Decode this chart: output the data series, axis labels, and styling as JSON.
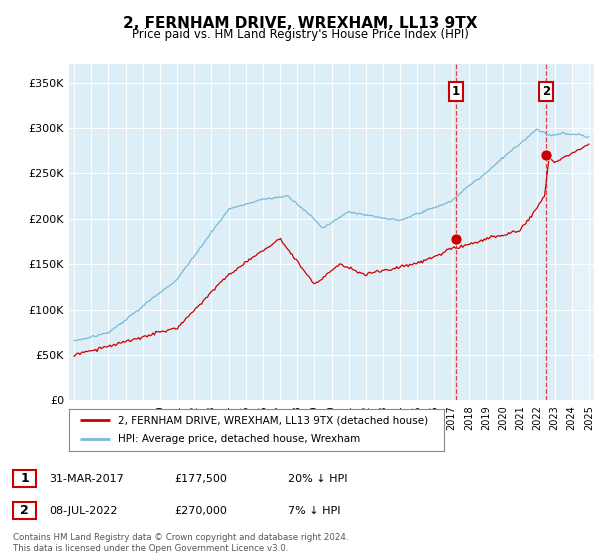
{
  "title": "2, FERNHAM DRIVE, WREXHAM, LL13 9TX",
  "subtitle": "Price paid vs. HM Land Registry's House Price Index (HPI)",
  "ylabel_ticks": [
    "£0",
    "£50K",
    "£100K",
    "£150K",
    "£200K",
    "£250K",
    "£300K",
    "£350K"
  ],
  "ylim": [
    0,
    370000
  ],
  "xlim_start": 1994.7,
  "xlim_end": 2025.3,
  "hpi_color": "#7ab8d9",
  "price_color": "#cc0000",
  "transaction1_date": 2017.24,
  "transaction1_price": 177500,
  "transaction1_label": "1",
  "transaction2_date": 2022.52,
  "transaction2_price": 270000,
  "transaction2_label": "2",
  "legend_line1": "2, FERNHAM DRIVE, WREXHAM, LL13 9TX (detached house)",
  "legend_line2": "HPI: Average price, detached house, Wrexham",
  "table_row1": [
    "1",
    "31-MAR-2017",
    "£177,500",
    "20% ↓ HPI"
  ],
  "table_row2": [
    "2",
    "08-JUL-2022",
    "£270,000",
    "7% ↓ HPI"
  ],
  "footer": "Contains HM Land Registry data © Crown copyright and database right 2024.\nThis data is licensed under the Open Government Licence v3.0.",
  "background_color": "#ffffff",
  "plot_bg_color": "#ddeef7"
}
